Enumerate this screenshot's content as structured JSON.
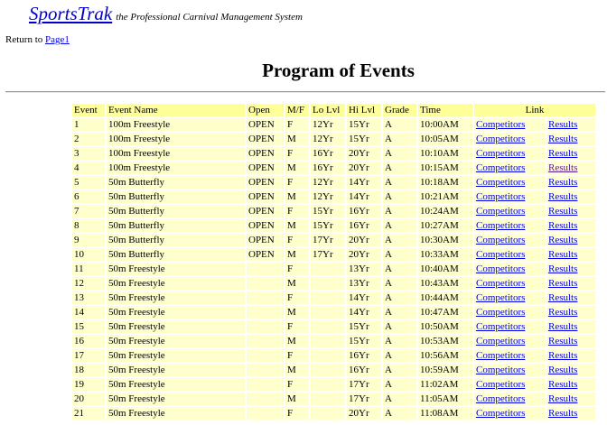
{
  "header": {
    "brand": "SportsTrak",
    "tagline": "the Professional Carnival Management System"
  },
  "nav": {
    "return_label": "Return to",
    "return_link": "Page1"
  },
  "page_title": "Program of Events",
  "table": {
    "columns": [
      "Event",
      "Event Name",
      "Open",
      "M/F",
      "Lo Lvl",
      "Hi Lvl",
      "Grade",
      "Time",
      "Link"
    ],
    "link_labels": {
      "competitors": "Competitors",
      "results": "Results"
    },
    "rows": [
      [
        "1",
        "100m Freestyle",
        "OPEN",
        "F",
        "12Yr",
        "15Yr",
        "A",
        "10:00AM"
      ],
      [
        "2",
        "100m Freestyle",
        "OPEN",
        "M",
        "12Yr",
        "15Yr",
        "A",
        "10:05AM"
      ],
      [
        "3",
        "100m Freestyle",
        "OPEN",
        "F",
        "16Yr",
        "20Yr",
        "A",
        "10:10AM"
      ],
      [
        "4",
        "100m Freestyle",
        "OPEN",
        "M",
        "16Yr",
        "20Yr",
        "A",
        "10:15AM"
      ],
      [
        "5",
        "50m Butterfly",
        "OPEN",
        "F",
        "12Yr",
        "14Yr",
        "A",
        "10:18AM"
      ],
      [
        "6",
        "50m Butterfly",
        "OPEN",
        "M",
        "12Yr",
        "14Yr",
        "A",
        "10:21AM"
      ],
      [
        "7",
        "50m Butterfly",
        "OPEN",
        "F",
        "15Yr",
        "16Yr",
        "A",
        "10:24AM"
      ],
      [
        "8",
        "50m Butterfly",
        "OPEN",
        "M",
        "15Yr",
        "16Yr",
        "A",
        "10:27AM"
      ],
      [
        "9",
        "50m Butterfly",
        "OPEN",
        "F",
        "17Yr",
        "20Yr",
        "A",
        "10:30AM"
      ],
      [
        "10",
        "50m Butterfly",
        "OPEN",
        "M",
        "17Yr",
        "20Yr",
        "A",
        "10:33AM"
      ],
      [
        "11",
        "50m Freestyle",
        "",
        "F",
        "",
        "13Yr",
        "A",
        "10:40AM"
      ],
      [
        "12",
        "50m Freestyle",
        "",
        "M",
        "",
        "13Yr",
        "A",
        "10:43AM"
      ],
      [
        "13",
        "50m Freestyle",
        "",
        "F",
        "",
        "14Yr",
        "A",
        "10:44AM"
      ],
      [
        "14",
        "50m Freestyle",
        "",
        "M",
        "",
        "14Yr",
        "A",
        "10:47AM"
      ],
      [
        "15",
        "50m Freestyle",
        "",
        "F",
        "",
        "15Yr",
        "A",
        "10:50AM"
      ],
      [
        "16",
        "50m Freestyle",
        "",
        "M",
        "",
        "15Yr",
        "A",
        "10:53AM"
      ],
      [
        "17",
        "50m Freestyle",
        "",
        "F",
        "",
        "16Yr",
        "A",
        "10:56AM"
      ],
      [
        "18",
        "50m Freestyle",
        "",
        "M",
        "",
        "16Yr",
        "A",
        "10:59AM"
      ],
      [
        "19",
        "50m Freestyle",
        "",
        "F",
        "",
        "17Yr",
        "A",
        "11:02AM"
      ],
      [
        "20",
        "50m Freestyle",
        "",
        "M",
        "",
        "17Yr",
        "A",
        "11:05AM"
      ],
      [
        "21",
        "50m Freestyle",
        "",
        "F",
        "",
        "20Yr",
        "A",
        "11:08AM"
      ]
    ],
    "visited_results_row": 3
  },
  "colors": {
    "header_bg": "#ffff99",
    "row_bg": "#ffffcc",
    "link": "#0000ee",
    "visited_link": "#551a8b",
    "brand": "#0000cc"
  }
}
